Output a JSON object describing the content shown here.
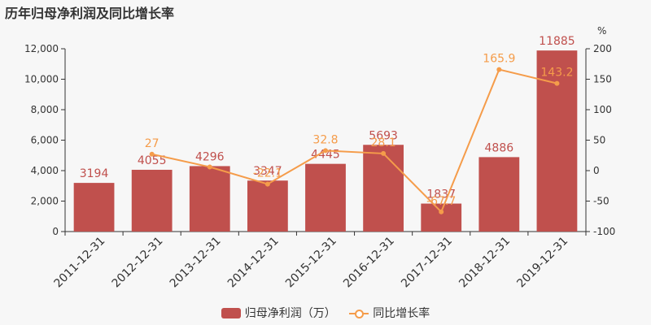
{
  "title": "历年归母净利润及同比增长率",
  "colors": {
    "bar": "#c0504d",
    "line": "#f59c4a",
    "axis": "#333333",
    "grid": "#cccccc"
  },
  "chart_data": {
    "type": "bar",
    "title": "历年归母净利润及同比增长率",
    "categories": [
      "2011-12-31",
      "2012-12-31",
      "2013-12-31",
      "2014-12-31",
      "2015-12-31",
      "2016-12-31",
      "2017-12-31",
      "2018-12-31",
      "2019-12-31"
    ],
    "series": [
      {
        "name": "归母净利润（万）",
        "type": "bar",
        "axis": "left",
        "values": [
          3194,
          4055,
          4296,
          3347,
          4445,
          5693,
          1837,
          4886,
          11885
        ]
      },
      {
        "name": "同比增长率",
        "type": "line",
        "axis": "right",
        "values": [
          null,
          27,
          6.0,
          -22.1,
          32.8,
          28.1,
          -67.7,
          165.9,
          143.2
        ],
        "labels": [
          "",
          "27",
          "",
          "-22.1",
          "32.8",
          "28.1",
          "-67.7",
          "165.9",
          "143.2"
        ]
      }
    ],
    "y_left": {
      "ylim": [
        0,
        12000
      ],
      "ticks": [
        "0",
        "2,000",
        "4,000",
        "6,000",
        "8,000",
        "10,000",
        "12,000"
      ]
    },
    "y_right": {
      "ylim": [
        -100,
        200
      ],
      "ticks": [
        "-100",
        "-50",
        "0",
        "50",
        "100",
        "150",
        "200"
      ],
      "unit": "%"
    },
    "grid": true,
    "legend": "bottom-center"
  }
}
